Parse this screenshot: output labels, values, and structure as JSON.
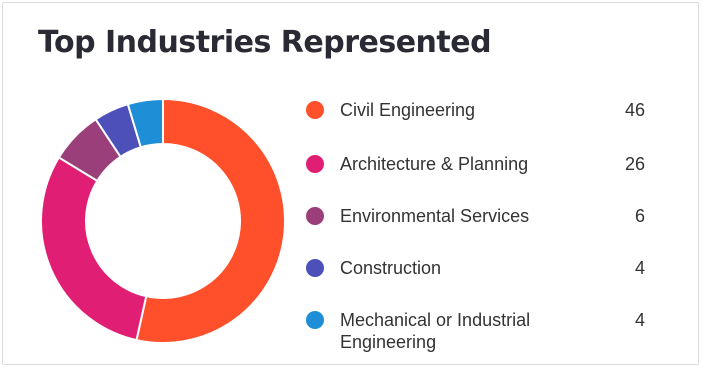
{
  "card": {
    "title": "Top Industries Represented"
  },
  "chart_data": {
    "type": "pie",
    "variant": "donut",
    "categories": [
      "Civil Engineering",
      "Architecture & Planning",
      "Environmental Services",
      "Construction",
      "Mechanical or Industrial Engineering"
    ],
    "values": [
      46,
      26,
      6,
      4,
      4
    ],
    "colors": [
      "#ff4f2b",
      "#e01f74",
      "#9b3f7a",
      "#4d50b8",
      "#1e8fd6"
    ],
    "legend_placement": "right",
    "start_angle_deg": 0,
    "direction": "clockwise"
  }
}
